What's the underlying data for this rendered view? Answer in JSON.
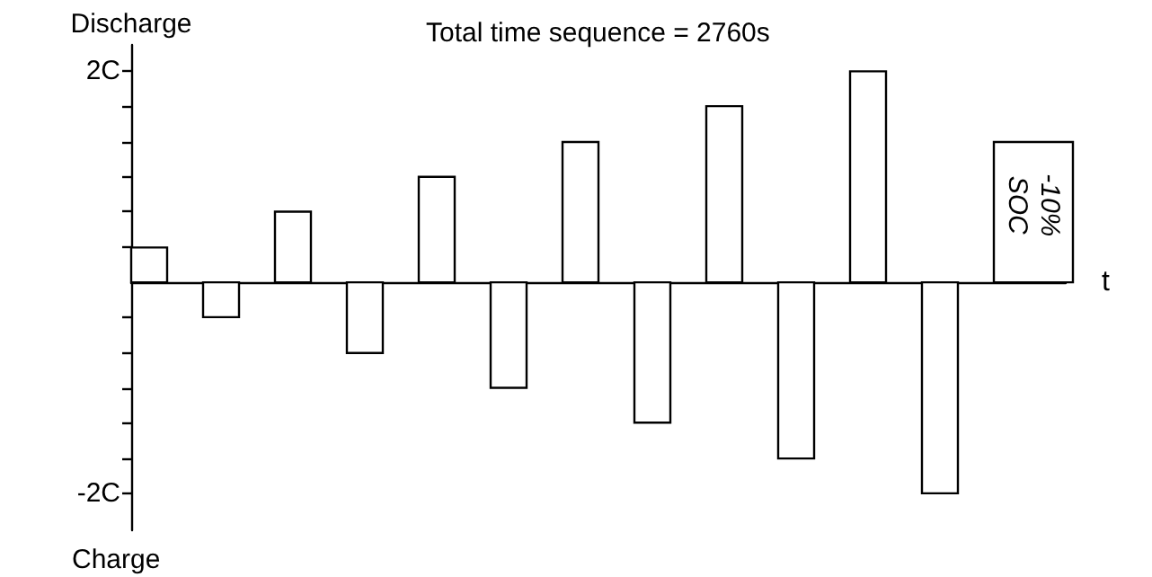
{
  "chart_data": {
    "type": "bar",
    "title": "Total time sequence = 2760s",
    "xlabel": "t",
    "ylabel": "Discharge",
    "annotations": [
      "Charge",
      "-10% SOC"
    ],
    "categories": [
      null,
      null,
      null,
      null,
      null,
      null,
      null,
      null,
      null,
      null,
      null,
      null,
      null
    ],
    "series": [
      {
        "color": "#ffffff",
        "values": [
          0.33,
          -0.33,
          0.67,
          -0.67,
          1,
          -1,
          1.33,
          -1.33,
          1.67,
          -1.67,
          2,
          -2,
          1.33
        ]
      }
    ],
    "ylim": [
      -2.35,
      2.25
    ],
    "yticks": [
      {
        "value": -2,
        "label": "-2C"
      },
      {
        "value": -1.67,
        "label": null
      },
      {
        "value": -1.33,
        "label": null
      },
      {
        "value": -1,
        "label": null
      },
      {
        "value": -0.67,
        "label": null
      },
      {
        "value": -0.33,
        "label": null
      },
      {
        "value": 0.33,
        "label": null
      },
      {
        "value": 0.67,
        "label": null
      },
      {
        "value": 1,
        "label": null
      },
      {
        "value": 1.33,
        "label": null
      },
      {
        "value": 1.67,
        "label": null
      },
      {
        "value": 2,
        "label": "2C"
      }
    ],
    "grid": false
  }
}
